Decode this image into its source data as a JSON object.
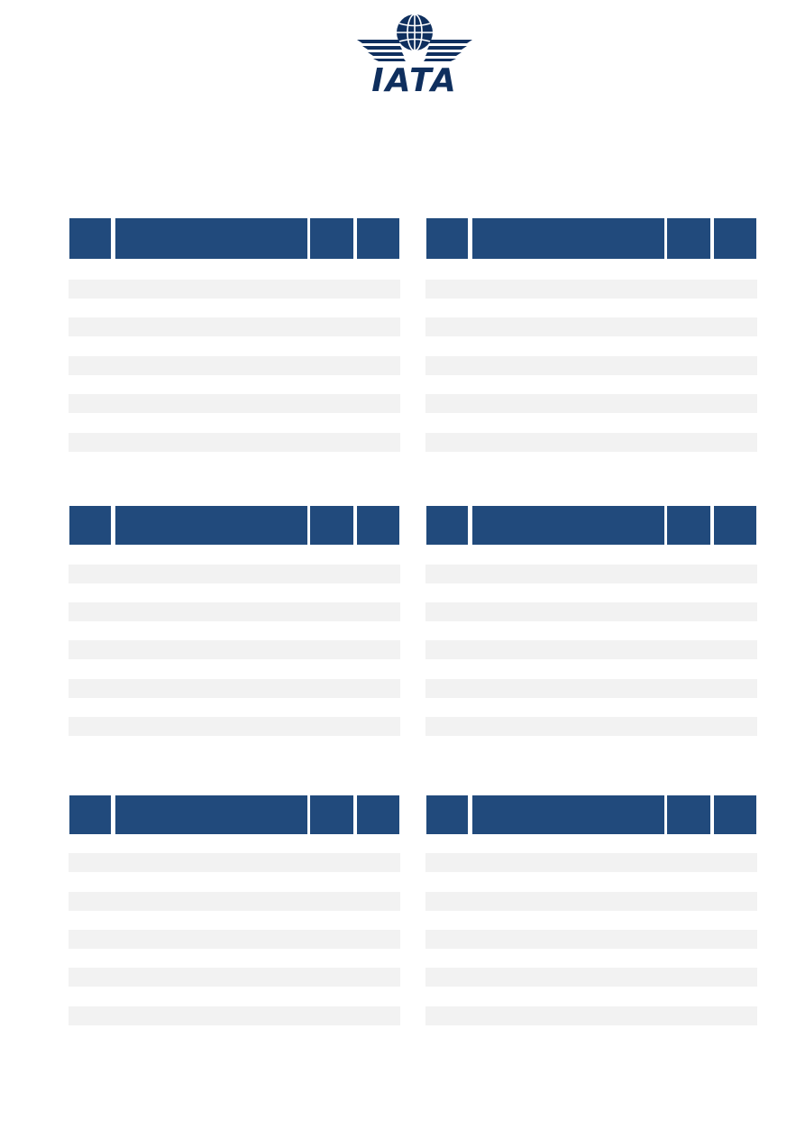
{
  "logo": {
    "text": "IATA",
    "brand_color": "#0f2f5e"
  },
  "colors": {
    "table_header": "#214a7c",
    "row_stripe": "#f2f2f2"
  },
  "tables": [
    {
      "id": "table-1",
      "columns": [
        "",
        "",
        "",
        ""
      ],
      "striped_rows": 5
    },
    {
      "id": "table-2",
      "columns": [
        "",
        "",
        "",
        ""
      ],
      "striped_rows": 5
    },
    {
      "id": "table-3",
      "columns": [
        "",
        "",
        "",
        ""
      ],
      "striped_rows": 5
    },
    {
      "id": "table-4",
      "columns": [
        "",
        "",
        "",
        ""
      ],
      "striped_rows": 5
    },
    {
      "id": "table-5",
      "columns": [
        "",
        "",
        "",
        ""
      ],
      "striped_rows": 5
    },
    {
      "id": "table-6",
      "columns": [
        "",
        "",
        "",
        ""
      ],
      "striped_rows": 5
    }
  ]
}
